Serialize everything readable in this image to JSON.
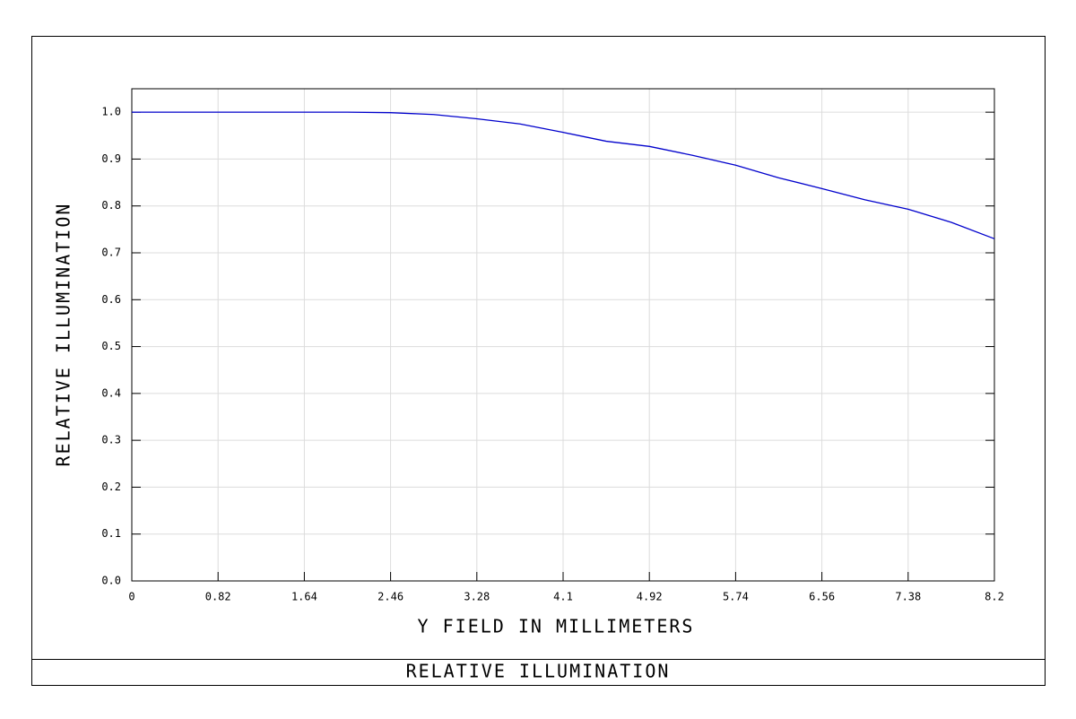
{
  "chart_data": {
    "type": "line",
    "title": "RELATIVE ILLUMINATION",
    "x_label": "Y FIELD IN MILLIMETERS",
    "y_label": "RELATIVE ILLUMINATION",
    "x": [
      0,
      0.41,
      0.82,
      1.23,
      1.64,
      2.05,
      2.46,
      2.87,
      3.28,
      3.69,
      4.1,
      4.51,
      4.92,
      5.33,
      5.74,
      6.15,
      6.56,
      6.97,
      7.38,
      7.79,
      8.2
    ],
    "series": [
      {
        "color": "#0000cc",
        "values": [
          1.0,
          1.0,
          1.0,
          1.0,
          1.0,
          1.0,
          0.999,
          0.995,
          0.986,
          0.975,
          0.957,
          0.938,
          0.927,
          0.908,
          0.887,
          0.86,
          0.837,
          0.813,
          0.793,
          0.765,
          0.73
        ]
      }
    ],
    "xlim": [
      0,
      8.2
    ],
    "xticks": [
      0,
      0.82,
      1.64,
      2.46,
      3.28,
      4.1,
      4.92,
      5.74,
      6.56,
      7.38,
      8.2
    ],
    "ylim": [
      0,
      1.05
    ],
    "yticks": [
      {
        "value": 0,
        "label": "0.0"
      },
      0.1,
      0.2,
      0.3,
      0.4,
      0.5,
      0.6,
      0.7,
      0.8,
      0.9,
      {
        "value": 1,
        "label": "1.0"
      }
    ],
    "grid": true
  }
}
